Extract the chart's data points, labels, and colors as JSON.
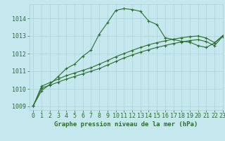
{
  "title": "Graphe pression niveau de la mer (hPa)",
  "background_color": "#c5e8ee",
  "grid_color": "#a8cdd6",
  "line_color": "#2d6e2d",
  "xlim": [
    -0.5,
    23
  ],
  "ylim": [
    1008.8,
    1014.8
  ],
  "yticks": [
    1009,
    1010,
    1011,
    1012,
    1013,
    1014
  ],
  "xticks": [
    0,
    1,
    2,
    3,
    4,
    5,
    6,
    7,
    8,
    9,
    10,
    11,
    12,
    13,
    14,
    15,
    16,
    17,
    18,
    19,
    20,
    21,
    22,
    23
  ],
  "series1_x": [
    0,
    1,
    2,
    3,
    4,
    5,
    6,
    7,
    8,
    9,
    10,
    11,
    12,
    13,
    14,
    15,
    16,
    17,
    18,
    19,
    20,
    21,
    22,
    23
  ],
  "series1_y": [
    1009.05,
    1009.9,
    1010.25,
    1010.7,
    1011.15,
    1011.4,
    1011.85,
    1012.2,
    1013.1,
    1013.75,
    1014.45,
    1014.55,
    1014.5,
    1014.4,
    1013.85,
    1013.65,
    1012.9,
    1012.8,
    1012.7,
    1012.65,
    1012.45,
    1012.35,
    1012.6,
    1013.0
  ],
  "series2_x": [
    0,
    1,
    2,
    3,
    4,
    5,
    6,
    7,
    8,
    9,
    10,
    11,
    12,
    13,
    14,
    15,
    16,
    17,
    18,
    19,
    20,
    21,
    22,
    23
  ],
  "series2_y": [
    1009.05,
    1010.15,
    1010.35,
    1010.55,
    1010.75,
    1010.9,
    1011.05,
    1011.2,
    1011.4,
    1011.6,
    1011.82,
    1012.0,
    1012.18,
    1012.35,
    1012.5,
    1012.62,
    1012.72,
    1012.82,
    1012.9,
    1012.96,
    1013.0,
    1012.88,
    1012.62,
    1013.02
  ],
  "series3_x": [
    0,
    1,
    2,
    3,
    4,
    5,
    6,
    7,
    8,
    9,
    10,
    11,
    12,
    13,
    14,
    15,
    16,
    17,
    18,
    19,
    20,
    21,
    22,
    23
  ],
  "series3_y": [
    1009.05,
    1010.05,
    1010.2,
    1010.38,
    1010.55,
    1010.7,
    1010.85,
    1011.0,
    1011.15,
    1011.35,
    1011.55,
    1011.75,
    1011.92,
    1012.08,
    1012.22,
    1012.35,
    1012.46,
    1012.57,
    1012.66,
    1012.74,
    1012.79,
    1012.68,
    1012.45,
    1012.98
  ],
  "marker": "+",
  "markersize": 3.5,
  "linewidth": 0.8,
  "tick_fontsize": 6,
  "title_fontsize": 6.5
}
